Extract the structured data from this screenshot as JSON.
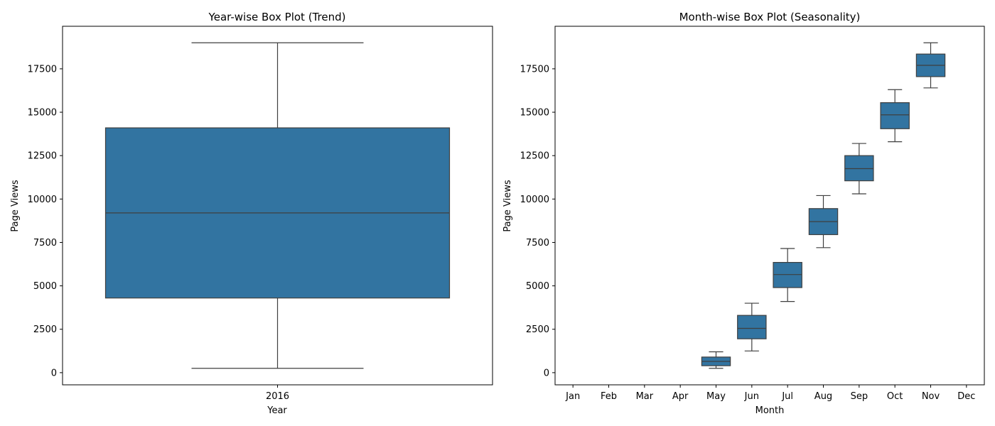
{
  "chart_data": [
    {
      "type": "boxplot",
      "title": "Year-wise Box Plot (Trend)",
      "xlabel": "Year",
      "ylabel": "Page Views",
      "ylim": [
        -700,
        19950
      ],
      "yticks": [
        0,
        2500,
        5000,
        7500,
        10000,
        12500,
        15000,
        17500
      ],
      "categories": [
        "2016"
      ],
      "boxes": [
        {
          "category": "2016",
          "whislo": 250,
          "q1": 4300,
          "med": 9200,
          "q3": 14100,
          "whishi": 19000
        }
      ],
      "color": "#3274a1",
      "grid": false,
      "legend": "none"
    },
    {
      "type": "boxplot",
      "title": "Month-wise Box Plot (Seasonality)",
      "xlabel": "Month",
      "ylabel": "Page Views",
      "ylim": [
        -700,
        19950
      ],
      "yticks": [
        0,
        2500,
        5000,
        7500,
        10000,
        12500,
        15000,
        17500
      ],
      "categories": [
        "Jan",
        "Feb",
        "Mar",
        "Apr",
        "May",
        "Jun",
        "Jul",
        "Aug",
        "Sep",
        "Oct",
        "Nov",
        "Dec"
      ],
      "boxes": [
        {
          "category": "May",
          "whislo": 250,
          "q1": 400,
          "med": 650,
          "q3": 900,
          "whishi": 1200
        },
        {
          "category": "Jun",
          "whislo": 1250,
          "q1": 1950,
          "med": 2550,
          "q3": 3300,
          "whishi": 4000
        },
        {
          "category": "Jul",
          "whislo": 4100,
          "q1": 4900,
          "med": 5650,
          "q3": 6350,
          "whishi": 7150
        },
        {
          "category": "Aug",
          "whislo": 7200,
          "q1": 7950,
          "med": 8700,
          "q3": 9450,
          "whishi": 10200
        },
        {
          "category": "Sep",
          "whislo": 10300,
          "q1": 11050,
          "med": 11750,
          "q3": 12500,
          "whishi": 13200
        },
        {
          "category": "Oct",
          "whislo": 13300,
          "q1": 14050,
          "med": 14850,
          "q3": 15550,
          "whishi": 16300
        },
        {
          "category": "Nov",
          "whislo": 16400,
          "q1": 17050,
          "med": 17700,
          "q3": 18350,
          "whishi": 19000
        }
      ],
      "color": "#3274a1",
      "grid": false,
      "legend": "none"
    }
  ]
}
